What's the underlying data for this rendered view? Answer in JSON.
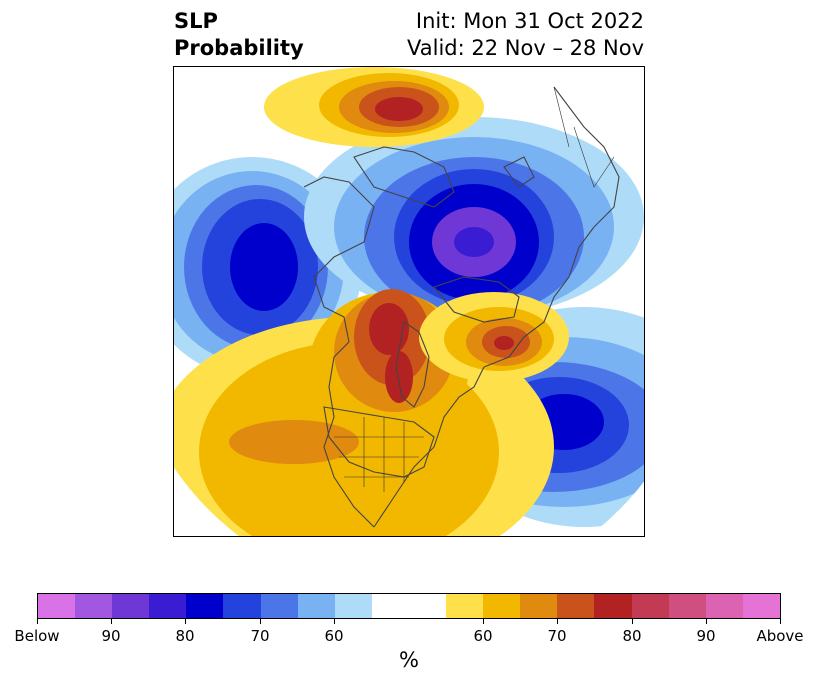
{
  "header": {
    "title_line1": "SLP",
    "title_line2": "Probability",
    "init": "Init: Mon 31 Oct 2022",
    "valid": "Valid: 22 Nov – 28 Nov"
  },
  "colorbar": {
    "colors": [
      "#d872e6",
      "#a257e0",
      "#6e37d6",
      "#3a1cd3",
      "#0000cc",
      "#2442dc",
      "#4c76e8",
      "#78b2f2",
      "#aedcf8",
      "#ffffff",
      "#ffffff",
      "#fee04a",
      "#f2b800",
      "#e08a10",
      "#c9531b",
      "#b22222",
      "#c23a53",
      "#cf4f80",
      "#dc63b2",
      "#e573d6"
    ],
    "tick_labels": [
      "Below",
      "90",
      "80",
      "70",
      "60",
      "60",
      "70",
      "80",
      "90",
      "Above"
    ],
    "units": "%"
  },
  "map": {
    "below_palette": {
      "60": "#aedcf8",
      "70": "#78b2f2",
      "75": "#4c76e8",
      "80": "#2442dc",
      "85": "#0000cc",
      "90": "#6e37d6"
    },
    "above_palette": {
      "60": "#fee04a",
      "65": "#f2b800",
      "70": "#e08a10",
      "75": "#c9531b",
      "80": "#b22222"
    }
  }
}
